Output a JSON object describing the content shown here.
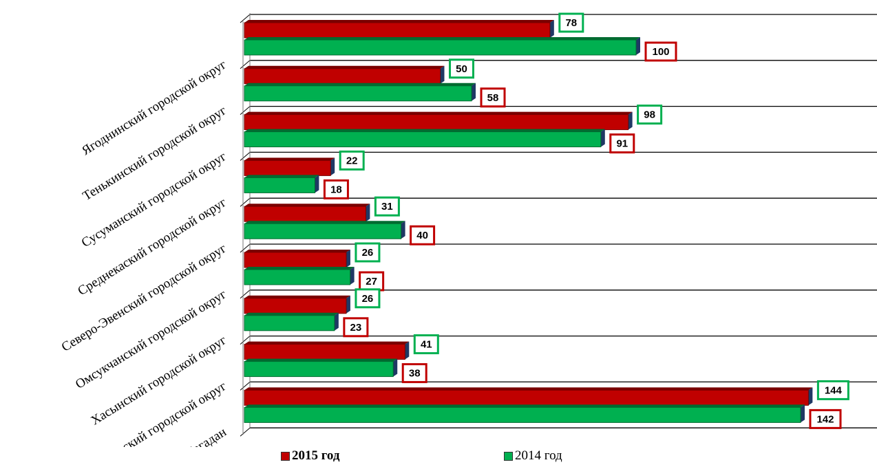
{
  "chart_data": {
    "type": "bar",
    "orientation": "horizontal",
    "categories": [
      "Ягоднинский городской округ",
      "Тенькинский городской округ",
      "Сусуманский городской округ",
      "Среднекаский городской округ",
      "Северо-Эвенский городской округ",
      "Омсукчанский городской округ",
      "Хасынский городской округ",
      "Ольский городской округ",
      "г.Магадан"
    ],
    "series": [
      {
        "name": "2015 год",
        "values": [
          78,
          50,
          98,
          22,
          31,
          26,
          26,
          41,
          144
        ],
        "color": "#c00000",
        "label_border": "#00b050"
      },
      {
        "name": "2014 год",
        "values": [
          100,
          58,
          91,
          18,
          40,
          27,
          23,
          38,
          142
        ],
        "color": "#00b050",
        "label_border": "#c00000"
      }
    ],
    "xlim": [
      0,
      150
    ],
    "grid": true,
    "legend_position": "bottom"
  }
}
